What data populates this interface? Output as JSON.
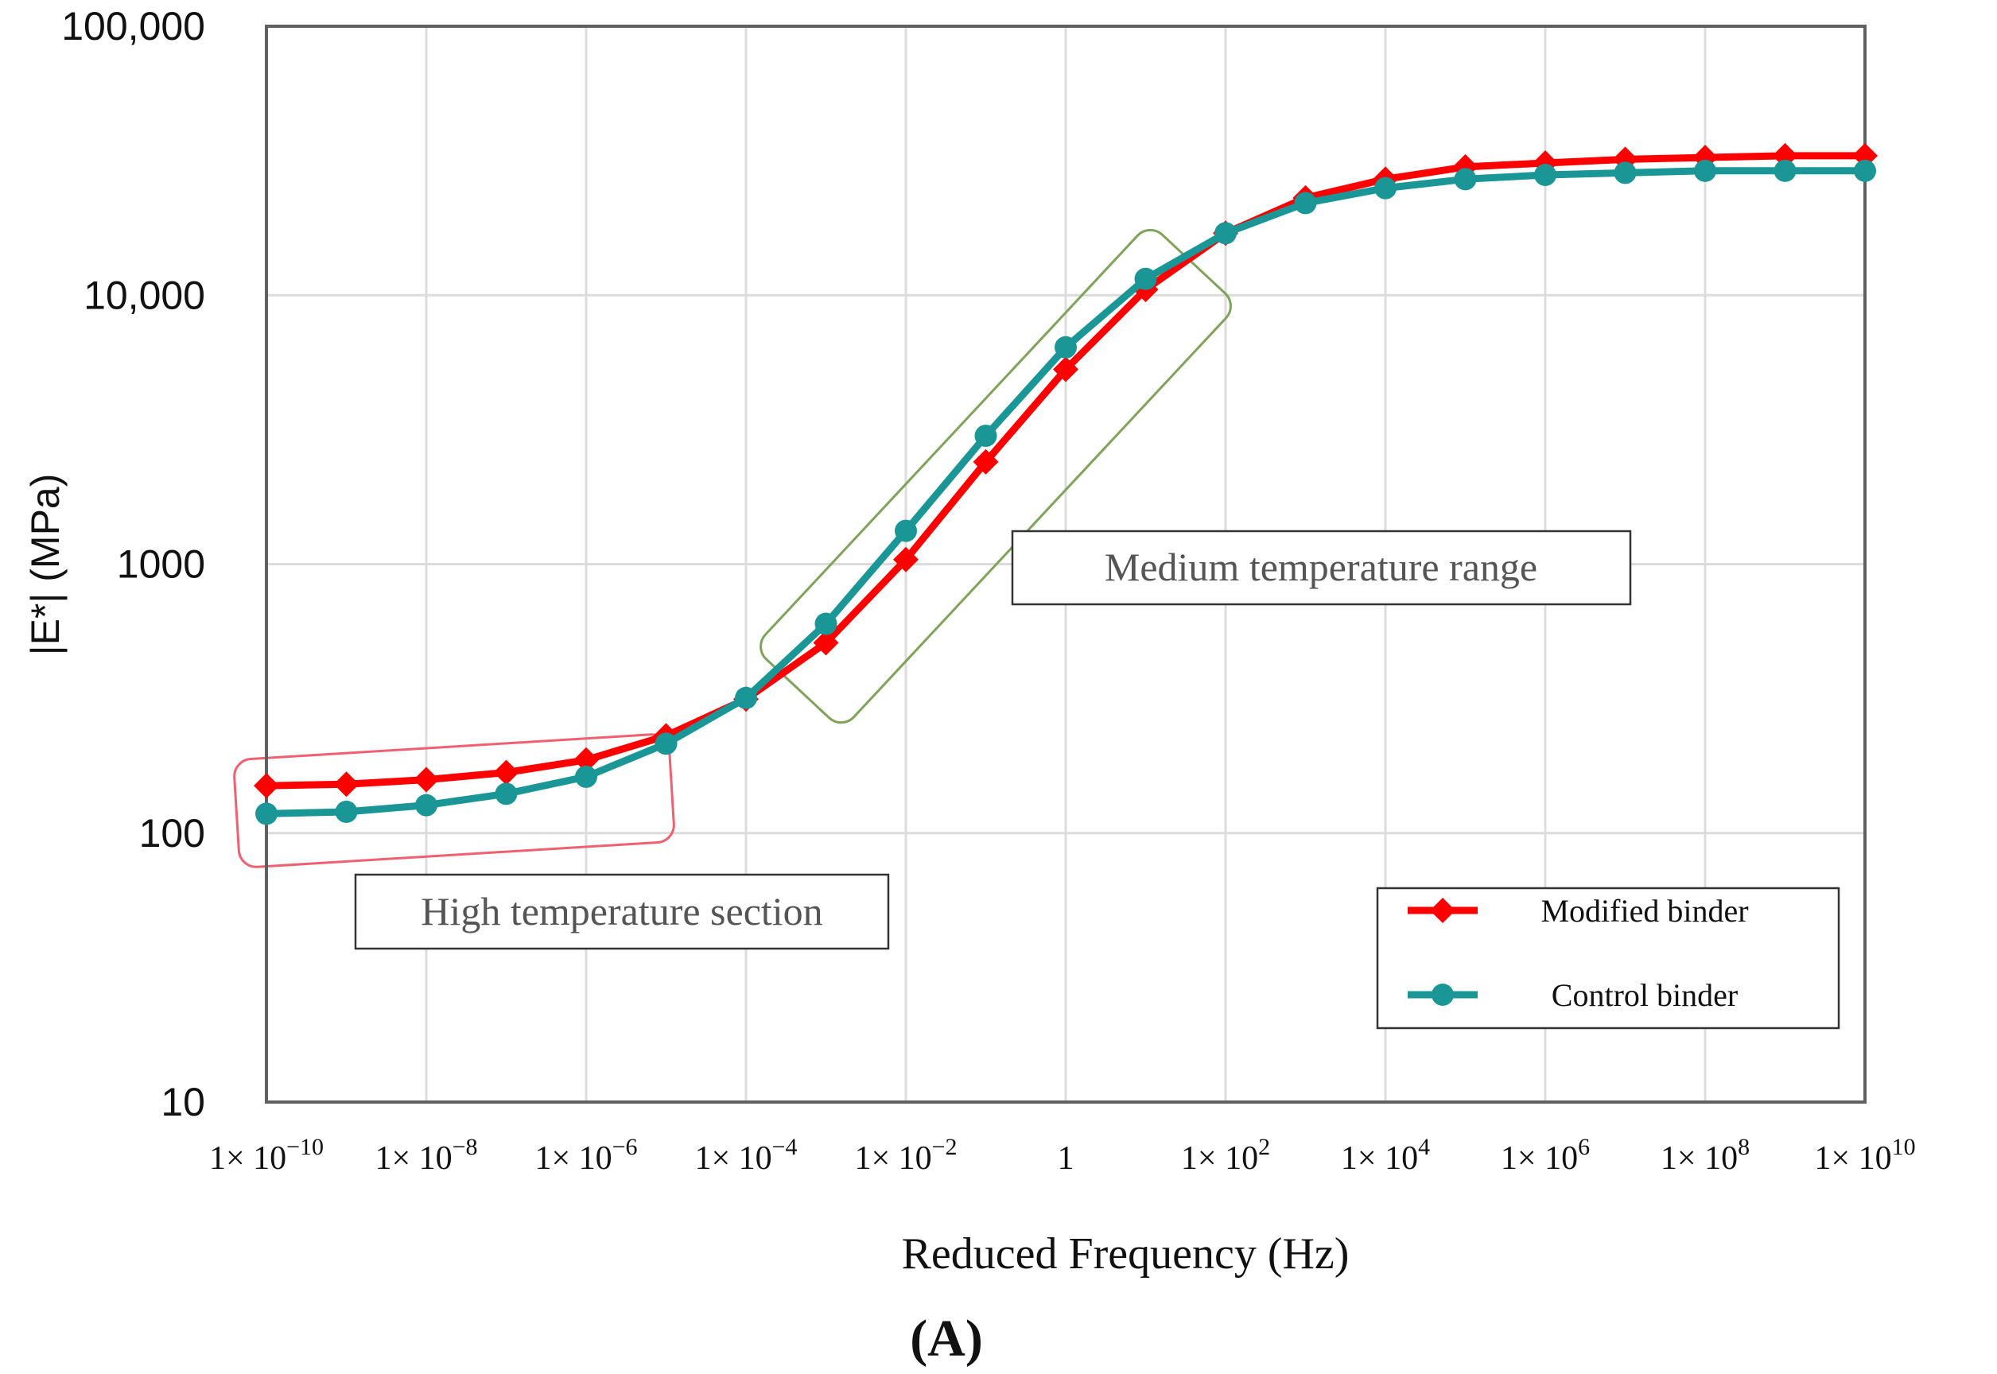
{
  "chart_data": {
    "type": "line",
    "xlabel": "Reduced Frequency (Hz)",
    "ylabel": "|E*| (MPa)",
    "panel_label": "(A)",
    "xscale": "log",
    "yscale": "log",
    "xlim": [
      1e-10,
      10000000000.0
    ],
    "ylim": [
      10,
      100000
    ],
    "grid": true,
    "legend": "bottom-right",
    "x_ticks": [
      {
        "value": 1e-10,
        "base": "1× 10",
        "exp": "−10"
      },
      {
        "value": 1e-08,
        "base": "1× 10",
        "exp": "−8"
      },
      {
        "value": 1e-06,
        "base": "1× 10",
        "exp": "−6"
      },
      {
        "value": 0.0001,
        "base": "1× 10",
        "exp": "−4"
      },
      {
        "value": 0.01,
        "base": "1× 10",
        "exp": "−2"
      },
      {
        "value": 1,
        "base": "1",
        "exp": ""
      },
      {
        "value": 100.0,
        "base": "1× 10",
        "exp": "2"
      },
      {
        "value": 10000.0,
        "base": "1× 10",
        "exp": "4"
      },
      {
        "value": 1000000.0,
        "base": "1× 10",
        "exp": "6"
      },
      {
        "value": 100000000.0,
        "base": "1× 10",
        "exp": "8"
      },
      {
        "value": 10000000000.0,
        "base": "1× 10",
        "exp": "10"
      }
    ],
    "y_ticks": [
      {
        "value": 10,
        "label": "10"
      },
      {
        "value": 100,
        "label": "100"
      },
      {
        "value": 1000,
        "label": "1000"
      },
      {
        "value": 10000,
        "label": "10,000"
      },
      {
        "value": 100000,
        "label": "100,000"
      }
    ],
    "x": [
      1e-10,
      1e-09,
      1e-08,
      1e-07,
      1e-06,
      1e-05,
      0.0001,
      0.001,
      0.01,
      0.1,
      1,
      10,
      100,
      1000,
      10000.0,
      100000.0,
      1000000.0,
      10000000.0,
      100000000.0,
      1000000000.0,
      10000000000.0
    ],
    "series": [
      {
        "name": "Modified binder",
        "color": "#ff0000",
        "marker": "diamond",
        "values": [
          150,
          152,
          158,
          168,
          187,
          230,
          315,
          510,
          1040,
          2400,
          5300,
          10500,
          17000,
          23000,
          27000,
          30000,
          31000,
          32000,
          32500,
          33000,
          33000
        ]
      },
      {
        "name": "Control binder",
        "color": "#1a9696",
        "marker": "circle",
        "values": [
          118,
          120,
          127,
          140,
          162,
          215,
          318,
          600,
          1330,
          3000,
          6400,
          11500,
          17000,
          22000,
          25000,
          27000,
          28000,
          28500,
          29000,
          29000,
          29000
        ]
      }
    ],
    "annotations": [
      {
        "text": "High temperature section",
        "box_color": "#f06070"
      },
      {
        "text": "Medium temperature range",
        "box_color": "#7fa35a"
      }
    ]
  }
}
